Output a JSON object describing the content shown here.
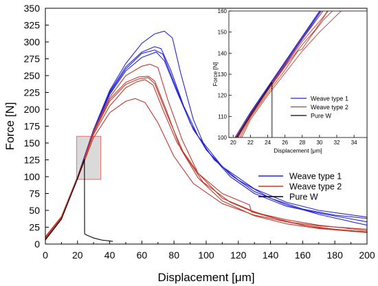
{
  "colors": {
    "weave1": "#2323d6",
    "weave2": "#c0392b",
    "pure": "#000000",
    "zoom_box_fill": "#d3d3d3",
    "zoom_box_stroke": "#e05050"
  },
  "chart_data": [
    {
      "type": "line",
      "xlabel": "Displacement [μm]",
      "ylabel": "Force [N]",
      "xlim": [
        0,
        200
      ],
      "ylim": [
        0,
        350
      ],
      "xticks": [
        "0",
        "20",
        "40",
        "60",
        "80",
        "100",
        "120",
        "140",
        "160",
        "180",
        "200"
      ],
      "yticks": [
        "0",
        "25",
        "50",
        "75",
        "100",
        "125",
        "150",
        "175",
        "200",
        "225",
        "250",
        "275",
        "300",
        "325",
        "350"
      ],
      "legend_position": "lower-right",
      "zoom_box": {
        "x": [
          19.5,
          34.5
        ],
        "y": [
          96,
          160
        ]
      },
      "series": [
        {
          "name": "Weave type 1",
          "color": "#2323d6",
          "curves": [
            [
              [
                0,
                8
              ],
              [
                10,
                38
              ],
              [
                20,
                98
              ],
              [
                30,
                170
              ],
              [
                40,
                228
              ],
              [
                50,
                268
              ],
              [
                60,
                298
              ],
              [
                68,
                312
              ],
              [
                74,
                316
              ],
              [
                79,
                306
              ],
              [
                84,
                255
              ],
              [
                92,
                185
              ],
              [
                100,
                140
              ],
              [
                115,
                100
              ],
              [
                130,
                75
              ],
              [
                150,
                56
              ],
              [
                170,
                46
              ],
              [
                200,
                33
              ]
            ],
            [
              [
                0,
                10
              ],
              [
                10,
                40
              ],
              [
                20,
                100
              ],
              [
                30,
                170
              ],
              [
                40,
                226
              ],
              [
                50,
                263
              ],
              [
                60,
                285
              ],
              [
                68,
                293
              ],
              [
                72,
                290
              ],
              [
                78,
                258
              ],
              [
                86,
                205
              ],
              [
                95,
                160
              ],
              [
                110,
                115
              ],
              [
                130,
                82
              ],
              [
                150,
                62
              ],
              [
                170,
                50
              ],
              [
                200,
                40
              ]
            ],
            [
              [
                0,
                7
              ],
              [
                10,
                38
              ],
              [
                20,
                98
              ],
              [
                30,
                168
              ],
              [
                40,
                224
              ],
              [
                50,
                260
              ],
              [
                60,
                283
              ],
              [
                68,
                288
              ],
              [
                73,
                282
              ],
              [
                80,
                240
              ],
              [
                90,
                180
              ],
              [
                100,
                140
              ],
              [
                115,
                103
              ],
              [
                130,
                78
              ],
              [
                150,
                58
              ],
              [
                170,
                44
              ],
              [
                200,
                28
              ]
            ],
            [
              [
                0,
                9
              ],
              [
                10,
                39
              ],
              [
                20,
                99
              ],
              [
                30,
                167
              ],
              [
                40,
                222
              ],
              [
                50,
                257
              ],
              [
                60,
                277
              ],
              [
                69,
                285
              ],
              [
                74,
                272
              ],
              [
                82,
                225
              ],
              [
                92,
                170
              ],
              [
                105,
                125
              ],
              [
                120,
                95
              ],
              [
                140,
                68
              ],
              [
                160,
                52
              ],
              [
                180,
                43
              ],
              [
                200,
                38
              ]
            ]
          ]
        },
        {
          "name": "Weave type 2",
          "color": "#c0392b",
          "curves": [
            [
              [
                0,
                8
              ],
              [
                10,
                38
              ],
              [
                20,
                98
              ],
              [
                30,
                168
              ],
              [
                40,
                218
              ],
              [
                50,
                250
              ],
              [
                60,
                264
              ],
              [
                65,
                267
              ],
              [
                70,
                262
              ],
              [
                76,
                215
              ],
              [
                85,
                155
              ],
              [
                95,
                105
              ],
              [
                110,
                68
              ],
              [
                130,
                48
              ],
              [
                150,
                33
              ],
              [
                170,
                24
              ],
              [
                200,
                18
              ]
            ],
            [
              [
                0,
                10
              ],
              [
                10,
                40
              ],
              [
                20,
                99
              ],
              [
                30,
                166
              ],
              [
                40,
                215
              ],
              [
                50,
                240
              ],
              [
                58,
                248
              ],
              [
                64,
                249
              ],
              [
                68,
                242
              ],
              [
                75,
                200
              ],
              [
                84,
                142
              ],
              [
                95,
                98
              ],
              [
                110,
                64
              ],
              [
                130,
                42
              ],
              [
                150,
                30
              ],
              [
                170,
                23
              ],
              [
                200,
                17
              ]
            ],
            [
              [
                0,
                11
              ],
              [
                10,
                41
              ],
              [
                20,
                100
              ],
              [
                30,
                165
              ],
              [
                40,
                212
              ],
              [
                50,
                237
              ],
              [
                58,
                245
              ],
              [
                64,
                247
              ],
              [
                68,
                238
              ],
              [
                76,
                190
              ],
              [
                86,
                135
              ],
              [
                98,
                92
              ],
              [
                115,
                62
              ],
              [
                130,
                47
              ],
              [
                150,
                36
              ],
              [
                170,
                28
              ],
              [
                200,
                20
              ]
            ],
            [
              [
                0,
                7
              ],
              [
                10,
                38
              ],
              [
                20,
                98
              ],
              [
                30,
                163
              ],
              [
                40,
                205
              ],
              [
                50,
                232
              ],
              [
                57,
                241
              ],
              [
                62,
                244
              ],
              [
                67,
                236
              ],
              [
                73,
                200
              ],
              [
                82,
                150
              ],
              [
                95,
                105
              ],
              [
                110,
                75
              ],
              [
                127,
                58
              ],
              [
                128,
                48
              ],
              [
                140,
                40
              ],
              [
                160,
                28
              ],
              [
                180,
                22
              ],
              [
                200,
                18
              ]
            ],
            [
              [
                0,
                9
              ],
              [
                10,
                39
              ],
              [
                20,
                97
              ],
              [
                30,
                158
              ],
              [
                40,
                195
              ],
              [
                50,
                212
              ],
              [
                56,
                216
              ],
              [
                62,
                210
              ],
              [
                70,
                180
              ],
              [
                80,
                130
              ],
              [
                92,
                90
              ],
              [
                110,
                60
              ],
              [
                130,
                43
              ],
              [
                150,
                33
              ],
              [
                170,
                27
              ],
              [
                200,
                22
              ]
            ]
          ]
        },
        {
          "name": "Pure W",
          "color": "#000000",
          "curves": [
            [
              [
                0,
                6
              ],
              [
                10,
                37
              ],
              [
                20,
                97
              ],
              [
                24.3,
                126
              ],
              [
                24.4,
                15
              ],
              [
                26,
                13
              ],
              [
                30,
                9
              ],
              [
                35,
                6
              ],
              [
                42,
                4
              ]
            ]
          ]
        }
      ]
    },
    {
      "type": "line",
      "xlabel": "Displacement [μm]",
      "ylabel": "Force [N]",
      "xlim": [
        19.5,
        35.5
      ],
      "ylim": [
        100,
        160
      ],
      "xticks": [
        "20",
        "22",
        "24",
        "26",
        "28",
        "30",
        "32",
        "34"
      ],
      "yticks": [
        "100",
        "110",
        "120",
        "130",
        "140",
        "150",
        "160"
      ],
      "legend_position": "lower-right",
      "series": [
        {
          "name": "Weave type 1",
          "color": "#2323d6",
          "curves": [
            [
              [
                20.2,
                100
              ],
              [
                22,
                112
              ],
              [
                24,
                124
              ],
              [
                26,
                136
              ],
              [
                28,
                148
              ],
              [
                30,
                160
              ]
            ],
            [
              [
                20.3,
                100
              ],
              [
                22,
                111.5
              ],
              [
                24,
                123.5
              ],
              [
                26,
                135.5
              ],
              [
                28,
                147.5
              ],
              [
                30.1,
                160
              ]
            ],
            [
              [
                20.4,
                100
              ],
              [
                22,
                111
              ],
              [
                24,
                123
              ],
              [
                26,
                135
              ],
              [
                28,
                147
              ],
              [
                30.2,
                160
              ]
            ],
            [
              [
                20.5,
                100
              ],
              [
                22,
                110.5
              ],
              [
                24,
                122.5
              ],
              [
                26,
                134.5
              ],
              [
                28,
                146.5
              ],
              [
                30.4,
                160
              ]
            ]
          ]
        },
        {
          "name": "Weave type 2",
          "color": "#c0392b",
          "curves": [
            [
              [
                20.3,
                100
              ],
              [
                22,
                111
              ],
              [
                24,
                123
              ],
              [
                26,
                135
              ],
              [
                28,
                147
              ],
              [
                30.4,
                160
              ]
            ],
            [
              [
                20.5,
                100
              ],
              [
                22,
                110.5
              ],
              [
                24,
                122.5
              ],
              [
                26,
                134
              ],
              [
                28,
                145.5
              ],
              [
                30.6,
                158
              ],
              [
                30.9,
                160
              ]
            ],
            [
              [
                20.6,
                100
              ],
              [
                22,
                110
              ],
              [
                24,
                122
              ],
              [
                26,
                133.5
              ],
              [
                28,
                144
              ],
              [
                29.5,
                151
              ],
              [
                30.8,
                159
              ],
              [
                31,
                160
              ]
            ],
            [
              [
                20.8,
                100
              ],
              [
                22,
                109.5
              ],
              [
                24,
                121
              ],
              [
                26,
                132
              ],
              [
                27.5,
                141
              ],
              [
                28,
                142
              ],
              [
                29,
                148
              ],
              [
                30.5,
                156
              ],
              [
                31.5,
                160
              ]
            ],
            [
              [
                21,
                100
              ],
              [
                22,
                108.5
              ],
              [
                24,
                120
              ],
              [
                26,
                130.5
              ],
              [
                28,
                141
              ],
              [
                30,
                150
              ],
              [
                31,
                154
              ],
              [
                32.5,
                160
              ]
            ]
          ]
        },
        {
          "name": "Pure W",
          "color": "#000000",
          "curves": [
            [
              [
                20.4,
                100
              ],
              [
                22,
                110.5
              ],
              [
                24,
                123
              ],
              [
                24.45,
                126
              ],
              [
                24.5,
                126
              ],
              [
                24.5,
                100
              ]
            ]
          ]
        }
      ]
    }
  ]
}
